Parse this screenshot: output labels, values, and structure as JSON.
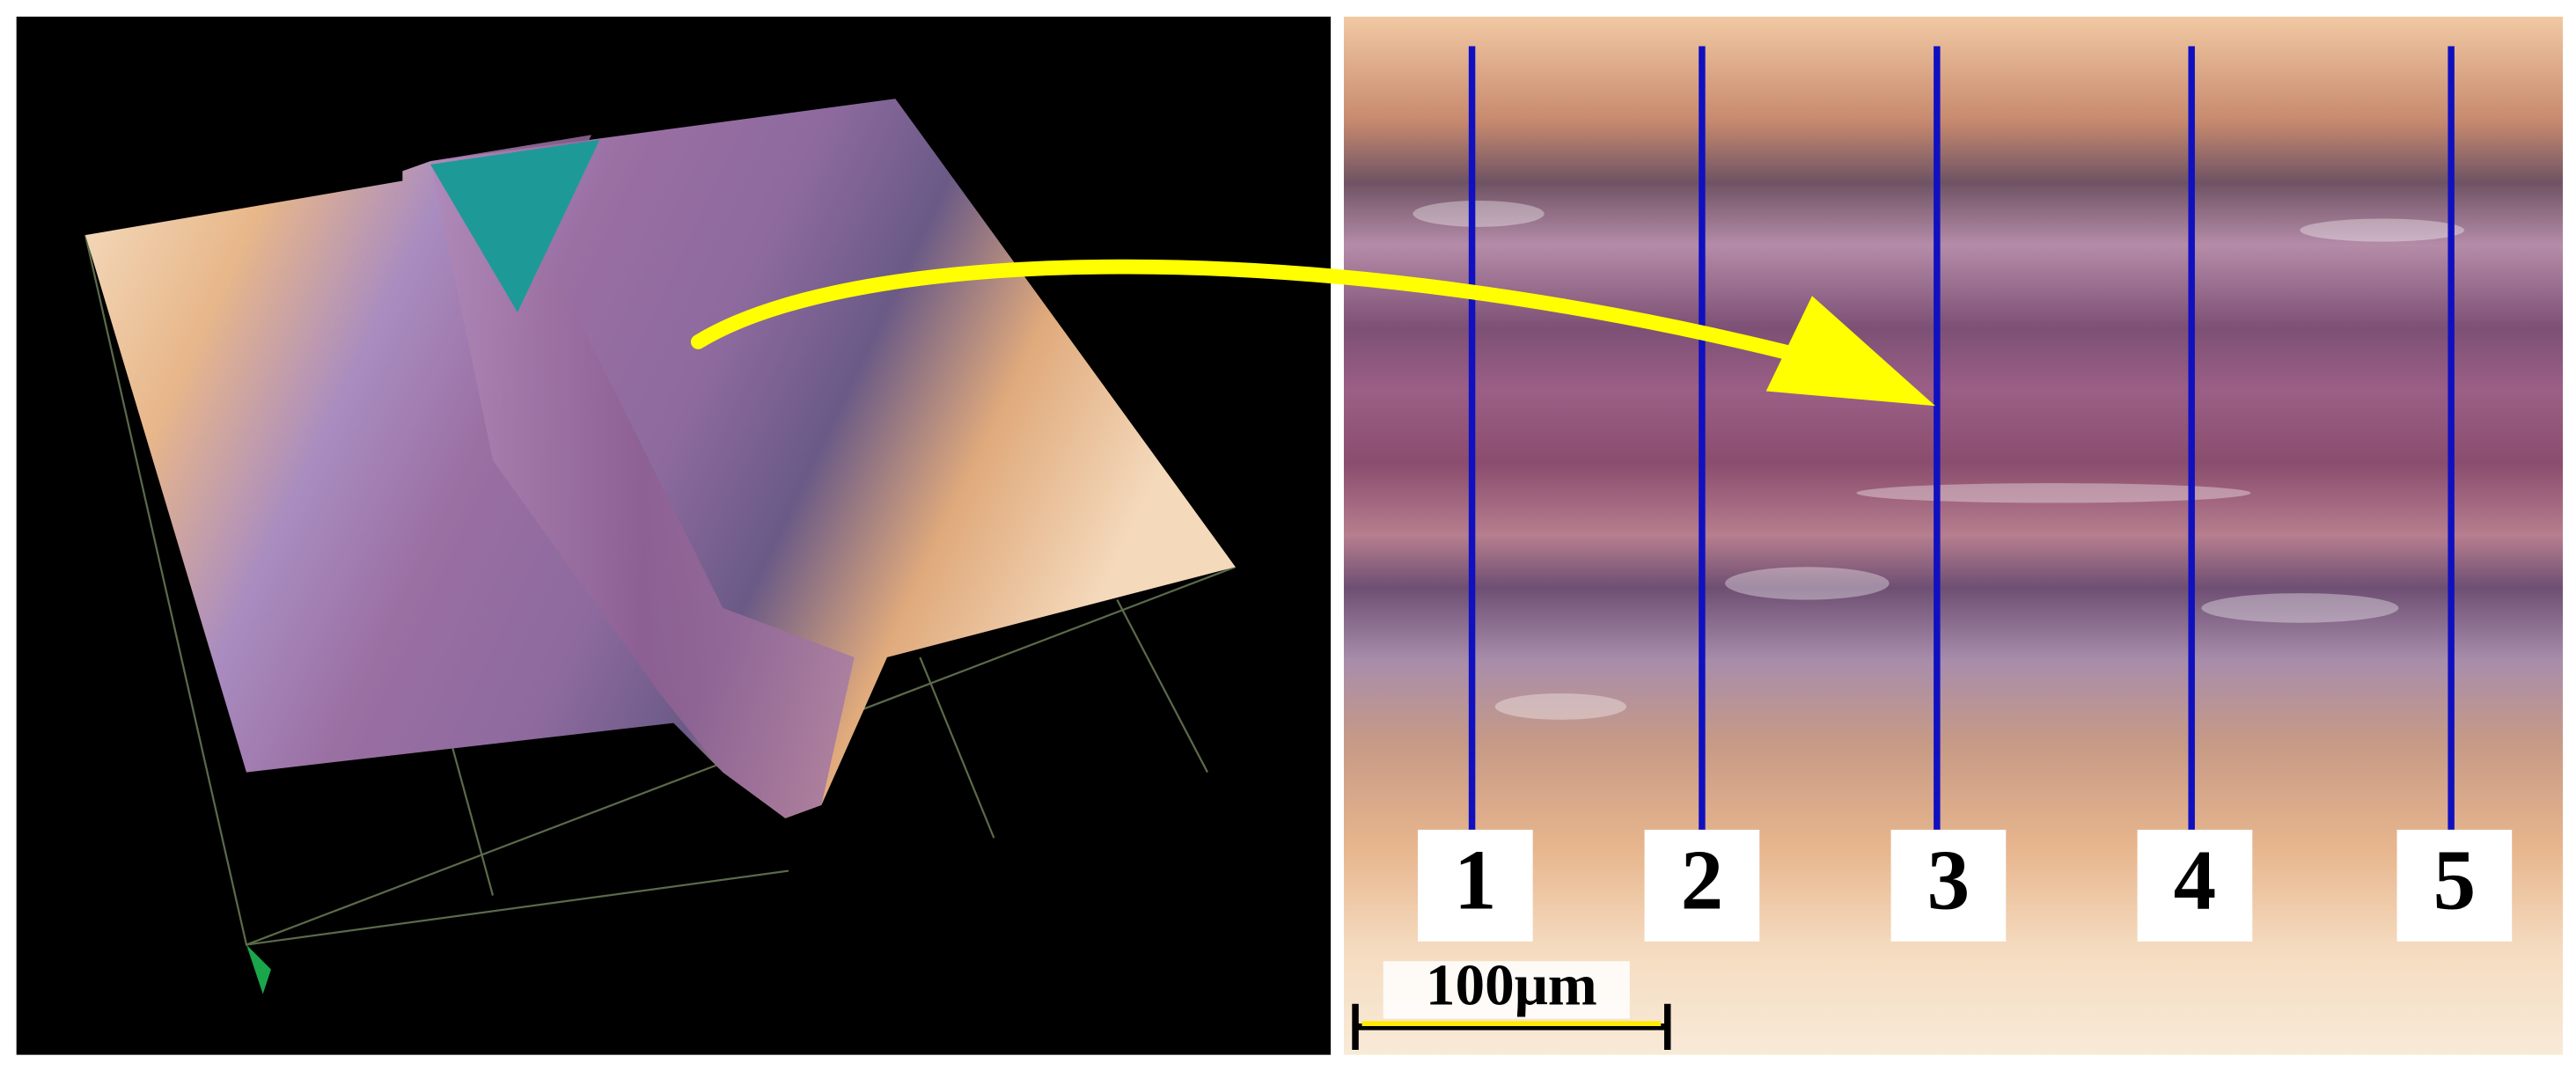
{
  "figure": {
    "line_labels": [
      "1",
      "2",
      "3",
      "4",
      "5"
    ],
    "scale_bar": "100μm"
  }
}
